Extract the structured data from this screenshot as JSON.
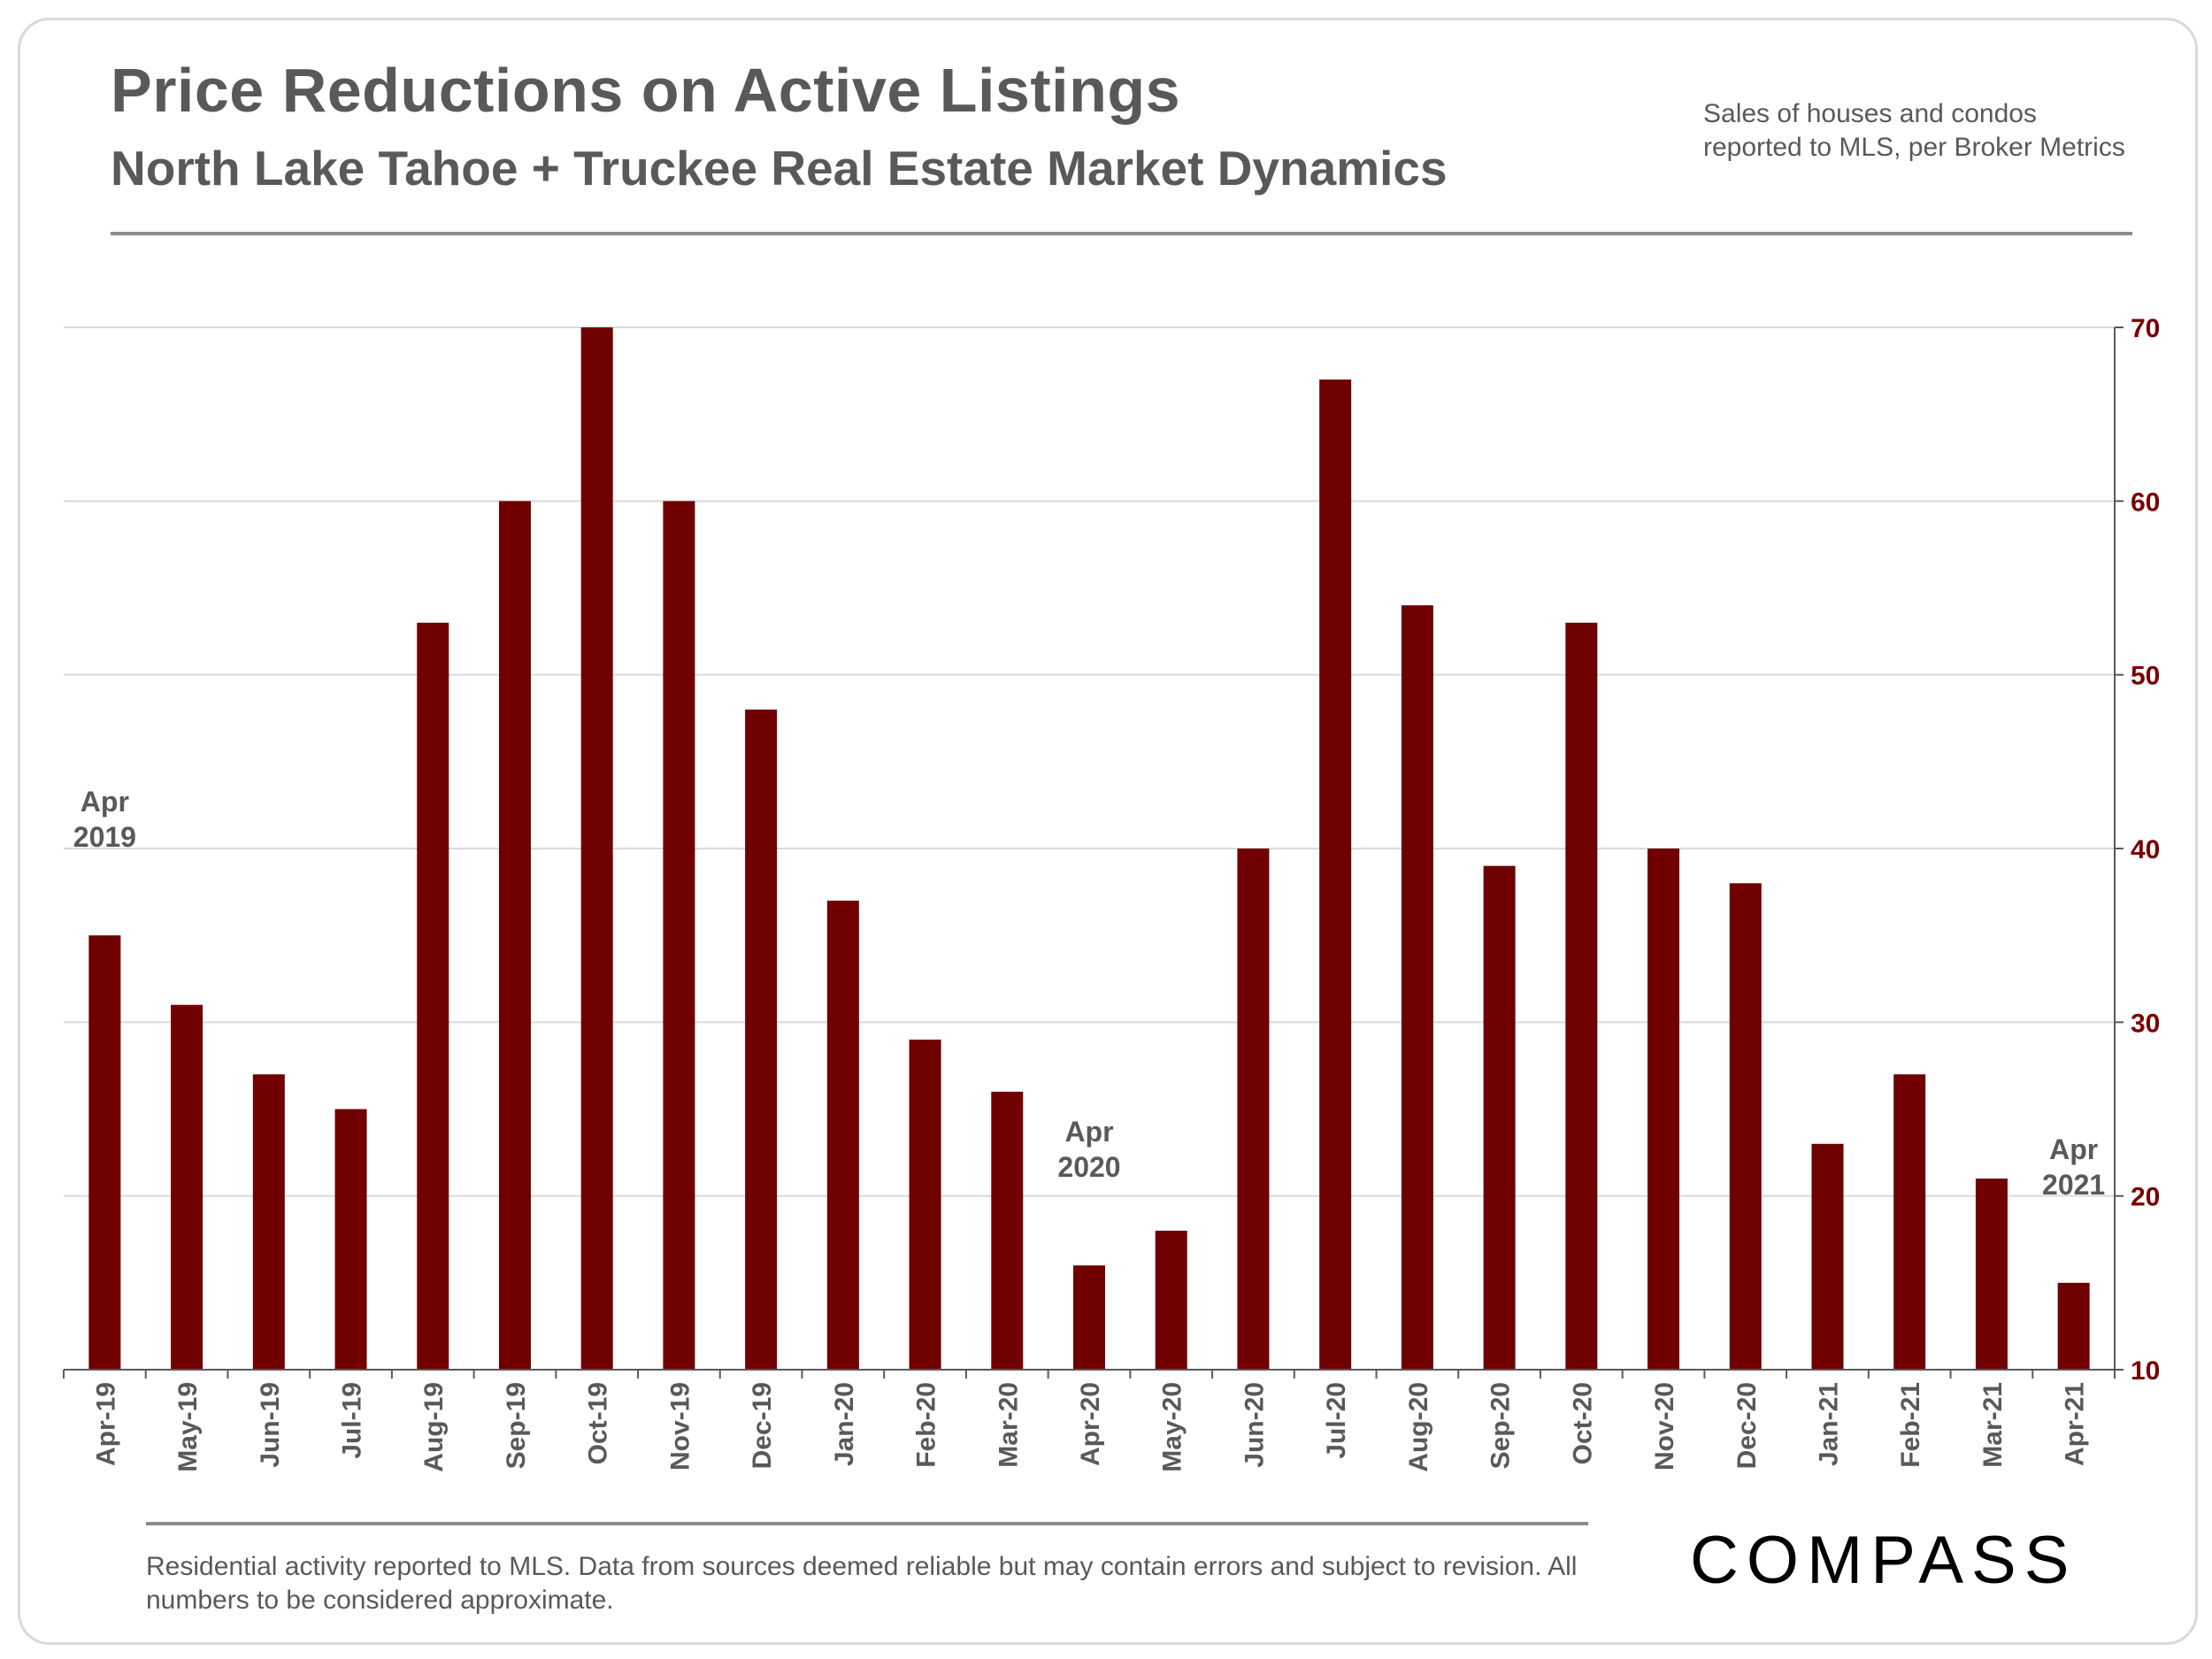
{
  "header": {
    "title": "Price Reductions on Active Listings",
    "subtitle": "North Lake Tahoe + Truckee Real Estate Market Dynamics",
    "source_line1": "Sales of houses and condos",
    "source_line2": "reported to MLS, per Broker Metrics"
  },
  "footer": {
    "disclaimer": "Residential activity reported to MLS. Data from sources deemed reliable but may contain errors and subject to revision. All numbers to be considered approximate.",
    "logo_text": "COMPASS"
  },
  "colors": {
    "bar": "#700000",
    "axis_text": "#7a0000",
    "label_text": "#595959",
    "grid": "#d9d9d9"
  },
  "chart_data": {
    "type": "bar",
    "categories": [
      "Apr-19",
      "May-19",
      "Jun-19",
      "Jul-19",
      "Aug-19",
      "Sep-19",
      "Oct-19",
      "Nov-19",
      "Dec-19",
      "Jan-20",
      "Feb-20",
      "Mar-20",
      "Apr-20",
      "May-20",
      "Jun-20",
      "Jul-20",
      "Aug-20",
      "Sep-20",
      "Oct-20",
      "Nov-20",
      "Dec-20",
      "Jan-21",
      "Feb-21",
      "Mar-21",
      "Apr-21"
    ],
    "values": [
      35,
      31,
      27,
      25,
      53,
      60,
      70,
      60,
      48,
      37,
      29,
      26,
      16,
      18,
      40,
      67,
      54,
      39,
      53,
      40,
      38,
      23,
      27,
      21,
      15
    ],
    "ylim": [
      10,
      70
    ],
    "yticks": [
      10,
      20,
      30,
      40,
      50,
      60,
      70
    ],
    "y_axis_side": "right",
    "grid": true,
    "annotations": [
      {
        "category": "Apr-19",
        "lines": [
          "Apr",
          "2019"
        ]
      },
      {
        "category": "Apr-20",
        "lines": [
          "Apr",
          "2020"
        ]
      },
      {
        "category": "Apr-21",
        "lines": [
          "Apr",
          "2021"
        ]
      }
    ]
  }
}
